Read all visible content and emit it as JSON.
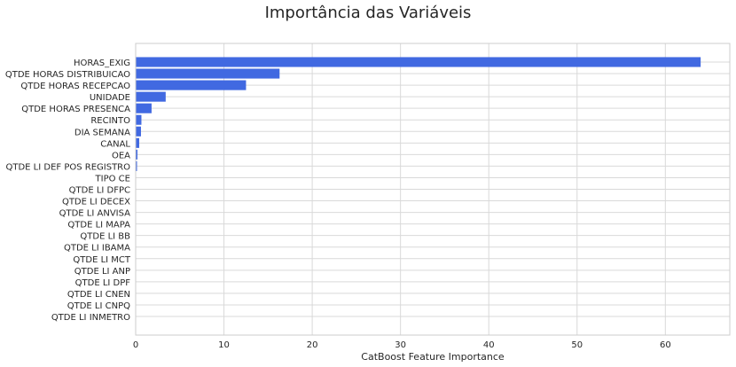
{
  "chart_data": {
    "type": "bar",
    "orientation": "horizontal",
    "title": "Importância das Variáveis",
    "xlabel": "CatBoost Feature Importance",
    "ylabel": "",
    "xlim": [
      0,
      67.3
    ],
    "xticks": [
      0,
      10,
      20,
      30,
      40,
      50,
      60
    ],
    "grid": true,
    "bar_color": "#4169e1",
    "categories": [
      "HORAS_EXIG",
      "QTDE HORAS DISTRIBUICAO",
      "QTDE HORAS RECEPCAO",
      "UNIDADE",
      "QTDE HORAS PRESENCA",
      "RECINTO",
      "DIA SEMANA",
      "CANAL",
      "OEA",
      "QTDE LI DEF POS REGISTRO",
      "TIPO CE",
      "QTDE LI DFPC",
      "QTDE LI DECEX",
      "QTDE LI ANVISA",
      "QTDE LI MAPA",
      "QTDE LI BB",
      "QTDE LI IBAMA",
      "QTDE LI MCT",
      "QTDE LI ANP",
      "QTDE LI DPF",
      "QTDE LI CNEN",
      "QTDE LI CNPQ",
      "QTDE LI INMETRO"
    ],
    "values": [
      64.0,
      16.3,
      12.5,
      3.4,
      1.8,
      0.65,
      0.6,
      0.4,
      0.2,
      0.15,
      0,
      0,
      0,
      0,
      0,
      0,
      0,
      0,
      0,
      0,
      0,
      0,
      0
    ]
  }
}
